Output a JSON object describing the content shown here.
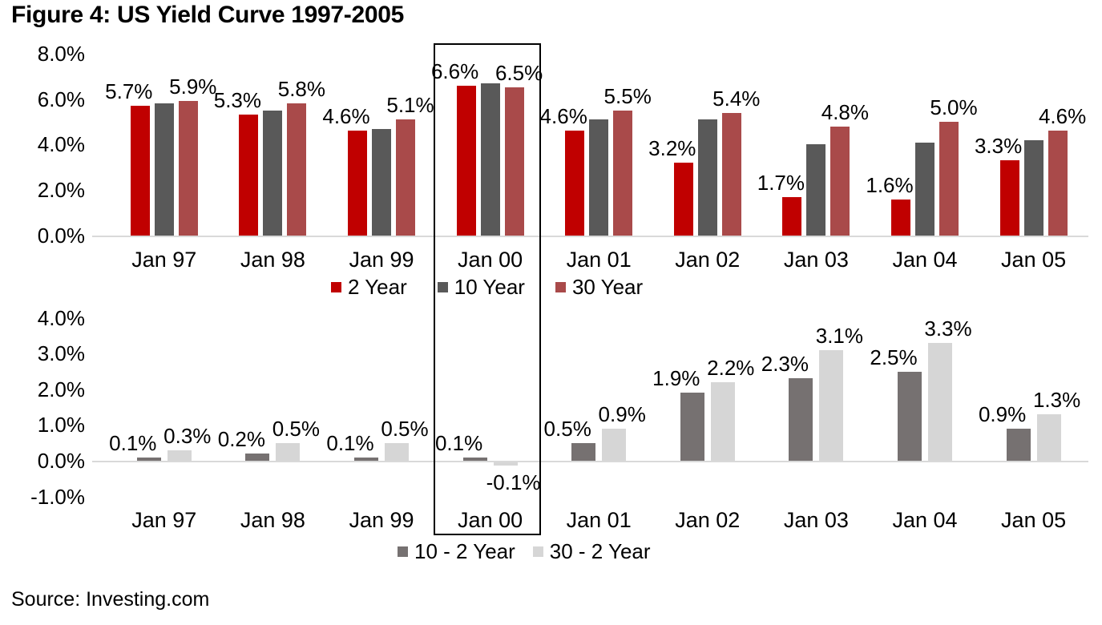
{
  "title": "Figure 4: US Yield Curve 1997-2005",
  "source_note": "Source: Investing.com",
  "highlighted_category": "Jan 00",
  "colors": {
    "two_year": "#C00000",
    "ten_year": "#595959",
    "thirty_year": "#A94A4A",
    "ten_minus_two": "#767171",
    "thirty_minus_two": "#D6D6D6",
    "axis_line": "#D9D9D9",
    "highlight_border": "#000000",
    "text": "#000000"
  },
  "chart_data": [
    {
      "type": "bar",
      "title": "",
      "xlabel": "",
      "ylabel": "",
      "ylim": [
        0,
        8
      ],
      "grid": false,
      "legend_position": "bottom",
      "categories": [
        "Jan 97",
        "Jan 98",
        "Jan 99",
        "Jan 00",
        "Jan 01",
        "Jan 02",
        "Jan 03",
        "Jan 04",
        "Jan 05"
      ],
      "yticks": [
        {
          "value": 8,
          "label": "8.0%"
        },
        {
          "value": 6,
          "label": "6.0%"
        },
        {
          "value": 4,
          "label": "4.0%"
        },
        {
          "value": 2,
          "label": "2.0%"
        },
        {
          "value": 0,
          "label": "0.0%"
        }
      ],
      "series": [
        {
          "name": "2 Year",
          "color": "#C00000",
          "values": [
            5.7,
            5.3,
            4.6,
            6.6,
            4.6,
            3.2,
            1.7,
            1.6,
            3.3
          ],
          "labels": [
            "5.7%",
            "5.3%",
            "4.6%",
            "6.6%",
            "4.6%",
            "3.2%",
            "1.7%",
            "1.6%",
            "3.3%"
          ]
        },
        {
          "name": "10 Year",
          "color": "#595959",
          "values": [
            5.8,
            5.5,
            4.7,
            6.7,
            5.1,
            5.1,
            4.0,
            4.1,
            4.2
          ],
          "labels": [
            null,
            null,
            null,
            null,
            null,
            null,
            null,
            null,
            null
          ]
        },
        {
          "name": "30 Year",
          "color": "#A94A4A",
          "values": [
            5.9,
            5.8,
            5.1,
            6.5,
            5.5,
            5.4,
            4.8,
            5.0,
            4.6
          ],
          "labels": [
            "5.9%",
            "5.8%",
            "5.1%",
            "6.5%",
            "5.5%",
            "5.4%",
            "4.8%",
            "5.0%",
            "4.6%"
          ]
        }
      ]
    },
    {
      "type": "bar",
      "title": "",
      "xlabel": "",
      "ylabel": "",
      "ylim": [
        -1,
        4
      ],
      "grid": false,
      "legend_position": "bottom",
      "categories": [
        "Jan 97",
        "Jan 98",
        "Jan 99",
        "Jan 00",
        "Jan 01",
        "Jan 02",
        "Jan 03",
        "Jan 04",
        "Jan 05"
      ],
      "yticks": [
        {
          "value": 4,
          "label": "4.0%"
        },
        {
          "value": 3,
          "label": "3.0%"
        },
        {
          "value": 2,
          "label": "2.0%"
        },
        {
          "value": 1,
          "label": "1.0%"
        },
        {
          "value": 0,
          "label": "0.0%"
        },
        {
          "value": -1,
          "label": "-1.0%"
        }
      ],
      "series": [
        {
          "name": "10 - 2 Year",
          "color": "#767171",
          "values": [
            0.1,
            0.2,
            0.1,
            0.1,
            0.5,
            1.9,
            2.3,
            2.5,
            0.9
          ],
          "labels": [
            "0.1%",
            "0.2%",
            "0.1%",
            "0.1%",
            "0.5%",
            "1.9%",
            "2.3%",
            "2.5%",
            "0.9%"
          ]
        },
        {
          "name": "30 - 2 Year",
          "color": "#D6D6D6",
          "values": [
            0.3,
            0.5,
            0.5,
            -0.1,
            0.9,
            2.2,
            3.1,
            3.3,
            1.3
          ],
          "labels": [
            "0.3%",
            "0.5%",
            "0.5%",
            "-0.1%",
            "0.9%",
            "2.2%",
            "3.1%",
            "3.3%",
            "1.3%"
          ]
        }
      ]
    }
  ]
}
